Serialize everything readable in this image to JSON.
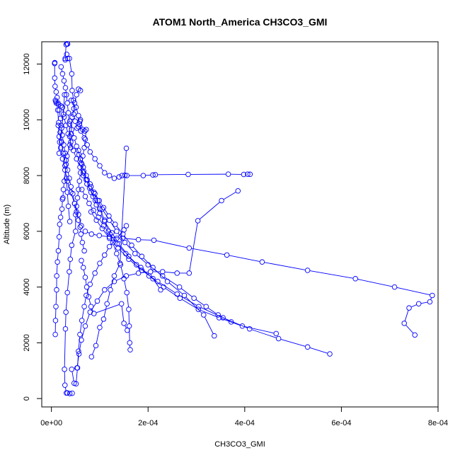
{
  "chart_data": {
    "type": "line",
    "title": "ATOM1 North_America CH3CO3_GMI",
    "xlabel": "CH3CO3_GMI",
    "ylabel": "Altitude (m)",
    "xlim": [
      -2e-05,
      0.0008
    ],
    "ylim": [
      -300,
      12800
    ],
    "x_ticks": [
      0,
      0.0002,
      0.0004,
      0.0006,
      0.0008
    ],
    "x_tick_labels": [
      "0e+00",
      "2e-04",
      "4e-04",
      "6e-04",
      "8e-04"
    ],
    "y_ticks": [
      0,
      2000,
      4000,
      6000,
      8000,
      10000,
      12000
    ],
    "y_tick_labels": [
      "0",
      "2000",
      "4000",
      "6000",
      "8000",
      "10000",
      "12000"
    ],
    "color": "#0000ff",
    "grid": false,
    "legend": "none",
    "series": [
      {
        "x": [
          3.35e-05,
          3.23e-05,
          3.04e-05,
          2.85e-05,
          3.16e-05,
          2.85e-05,
          3.35e-05,
          3.72e-05,
          4.21e-05,
          4.29e-05,
          4.57e-05,
          4.64e-05,
          4.29e-05,
          4.1e-05,
          3.81e-05,
          3.23e-05,
          3.04e-05,
          2.66e-05,
          2.47e-05,
          2.38e-05,
          2.28e-05,
          2.19e-05,
          1.9e-05,
          1.71e-05,
          1.61e-05,
          1.43e-05,
          1.24e-05,
          1.09e-05,
          1.07e-05,
          9.3e-06,
          8.5e-06,
          8e-06
        ],
        "y": [
          12720,
          12730,
          12700,
          12200,
          12350,
          12150,
          12200,
          12200,
          11650,
          11050,
          10700,
          10400,
          10100,
          9500,
          9100,
          8700,
          8400,
          7800,
          7500,
          7200,
          7150,
          6800,
          6500,
          6250,
          5800,
          5300,
          4900,
          4400,
          3900,
          3300,
          2800,
          2300
        ]
      },
      {
        "x": [
          7e-06,
          6.6e-06,
          6.8e-06,
          7.6e-06,
          9.8e-06,
          1.18e-05,
          1.37e-05,
          1.6e-05,
          1.88e-05,
          2e-05,
          2.24e-05,
          2.56e-05,
          2.84e-05,
          3.05e-05,
          3.36e-05,
          3.71e-05,
          4.03e-05,
          4.42e-05,
          4.8e-05,
          5.19e-05,
          5.58e-05,
          5.94e-05,
          6.1e-05,
          6.4e-05,
          6.8e-05
        ],
        "y": [
          12050,
          12020,
          11500,
          11200,
          11000,
          10800,
          10600,
          10350,
          10050,
          9800,
          9450,
          9100,
          8800,
          8550,
          8200,
          7900,
          7600,
          7350,
          7000,
          6700,
          6400,
          6150,
          5900,
          5600,
          5300
        ]
      },
      {
        "x": [
          8.2e-06,
          9.2e-06,
          1.01e-05,
          1.45e-05,
          1.95e-05,
          2.3e-05,
          2.62e-05,
          3e-05,
          3.45e-05,
          4e-05,
          4.55e-05,
          5.2e-05,
          5.91e-05,
          6.63e-05,
          7.35e-05,
          8.2e-05,
          9.1e-05,
          0.0001,
          0.00011,
          0.000118,
          0.000127,
          0.000135,
          0.000143,
          0.00015,
          0.000156,
          0.00016,
          0.000161,
          0.000162,
          0.000163
        ],
        "y": [
          10700,
          10650,
          10600,
          10550,
          10500,
          10450,
          10100,
          9800,
          9500,
          9200,
          8900,
          8600,
          8300,
          8000,
          7700,
          7400,
          7100,
          6800,
          6400,
          6000,
          5600,
          5200,
          4800,
          4300,
          3800,
          3200,
          2600,
          2000,
          1750
        ]
      },
      {
        "x": [
          6e-05,
          5.6e-05,
          5.2e-05,
          4.8e-05,
          4.6e-05,
          4.9e-05,
          5.3e-05,
          5.6e-05,
          5.9e-05,
          6e-05,
          6.5e-05,
          6.9e-05,
          7.2e-05,
          7e-05,
          6.8e-05,
          6.5e-05,
          6.3e-05,
          6e-05,
          5.8e-05,
          5.6e-05,
          5.4e-05,
          5.2e-05,
          5e-05,
          5e-05,
          4.2e-05,
          3.9e-05,
          3.7e-05,
          3.3e-05,
          3e-05,
          2.9e-05,
          2.7e-05,
          2.8e-05,
          3.1e-05,
          3.3e-05,
          3.8e-05,
          4.3e-05
        ],
        "y": [
          11050,
          11100,
          10900,
          10600,
          10200,
          9950,
          9700,
          9750,
          9950,
          10000,
          9650,
          9600,
          9650,
          9300,
          9000,
          8700,
          8400,
          8100,
          7800,
          7500,
          7200,
          6900,
          6600,
          6000,
          5500,
          5000,
          4550,
          3800,
          3100,
          2500,
          1050,
          480,
          200,
          200,
          180,
          190
        ]
      },
      {
        "x": [
          4.1e-05,
          5.1e-05,
          5.6e-05,
          5.8e-05,
          6.1e-05,
          6.8e-05,
          7.4e-05,
          8e-05,
          9e-05,
          0.0001,
          0.00011,
          0.00012,
          0.00013,
          0.00014,
          0.000146,
          0.000152,
          0.000156,
          0.00019,
          0.00021,
          0.000215,
          0.000283,
          0.000366,
          0.000398,
          0.000406,
          0.000411
        ],
        "y": [
          10700,
          10450,
          10150,
          9850,
          9600,
          9350,
          9100,
          8850,
          8600,
          8350,
          8100,
          8000,
          7900,
          7950,
          8000,
          8010,
          8000,
          8000,
          8020,
          8030,
          8040,
          8050,
          8040,
          8050,
          8045
        ]
      },
      {
        "x": [
          3.8e-05,
          4.2e-05,
          4.7e-05,
          5.2e-05,
          5.7e-05,
          6.2e-05,
          6.7e-05,
          7.2e-05,
          7.9e-05,
          8.6e-05,
          9.3e-05,
          0.0001,
          0.00011,
          0.000125,
          0.00014,
          0.00016,
          0.000185,
          0.00021,
          0.000226
        ],
        "y": [
          9950,
          9650,
          9350,
          9050,
          8750,
          8450,
          8150,
          7850,
          7550,
          7250,
          6950,
          6650,
          6350,
          5950,
          5550,
          5100,
          4700,
          4300,
          3900
        ]
      },
      {
        "x": [
          5.6e-05,
          6e-05,
          6.6e-05,
          7.2e-05,
          8e-05,
          8.8e-05,
          9.6e-05,
          0.000105,
          0.00012,
          0.000135,
          0.000152,
          0.000173,
          0.0002,
          0.00023,
          0.000265,
          0.000295,
          0.00032,
          0.000345,
          0.000372
        ],
        "y": [
          8900,
          8600,
          8300,
          8000,
          7700,
          7400,
          7100,
          6800,
          6400,
          6000,
          5600,
          5200,
          4800,
          4400,
          4000,
          3600,
          3300,
          3000,
          2750
        ]
      },
      {
        "x": [
          6.6e-05,
          7.4e-05,
          8.2e-05,
          9e-05,
          9.9e-05,
          0.000108,
          0.000119,
          0.000132,
          0.000148,
          0.000166,
          0.000187,
          0.00021,
          0.00024,
          0.000275,
          0.000315,
          0.000337
        ],
        "y": [
          8100,
          7850,
          7600,
          7350,
          7100,
          6850,
          6550,
          6250,
          5900,
          5500,
          5100,
          4700,
          4200,
          3700,
          3000,
          2250
        ]
      },
      {
        "x": [
          6.3e-05,
          7e-05,
          7.8e-05,
          8.7e-05,
          9.7e-05,
          0.000108,
          0.000121,
          0.000136,
          0.000154,
          0.000176,
          0.000202,
          0.000232,
          0.000266,
          0.000304,
          0.000347,
          0.000395,
          0.000465
        ],
        "y": [
          7500,
          7250,
          7000,
          6750,
          6500,
          6200,
          5900,
          5550,
          5200,
          4800,
          4400,
          4000,
          3600,
          3200,
          2900,
          2600,
          2330
        ]
      },
      {
        "x": [
          8.2e-05,
          9.3e-05,
          0.000105,
          0.00012,
          0.000138,
          0.00016,
          0.000187,
          0.00022,
          0.00026,
          0.000305,
          0.000355,
          0.00041,
          0.00047,
          0.00053,
          0.000576
        ],
        "y": [
          6700,
          6400,
          6100,
          5750,
          5400,
          5000,
          4600,
          4200,
          3750,
          3300,
          2900,
          2500,
          2150,
          1850,
          1600
        ]
      },
      {
        "x": [
          7e-05,
          8.3e-05,
          9.9e-05,
          0.00012,
          0.000147,
          0.00018,
          0.000212,
          0.000285,
          0.000363,
          0.000436,
          0.00053,
          0.000629,
          0.00071,
          0.000788,
          0.000783,
          0.00076,
          0.00074,
          0.00073,
          0.000752
        ],
        "y": [
          6000,
          5900,
          5850,
          5800,
          5750,
          5700,
          5680,
          5400,
          5150,
          4900,
          4600,
          4300,
          4000,
          3700,
          3470,
          3400,
          3250,
          2700,
          2280
        ]
      },
      {
        "x": [
          5.3e-05,
          5.7e-05,
          6.2e-05,
          7e-05,
          8e-05,
          9.5e-05,
          0.00011,
          0.00013,
          0.000155,
          0.00018,
          0.000205,
          0.00023,
          0.00026,
          0.000285,
          0.000303,
          0.000352,
          0.000386
        ],
        "y": [
          1100,
          1600,
          2100,
          2600,
          3100,
          3500,
          3900,
          4200,
          4400,
          4500,
          4550,
          4550,
          4500,
          4500,
          6380,
          7100,
          7450
        ]
      },
      {
        "x": [
          4.2e-05,
          4.7e-05,
          5.1e-05,
          5.4e-05,
          5.6e-05,
          5.9e-05,
          6.3e-05,
          6.8e-05,
          7.2e-05,
          8e-05,
          9e-05,
          0.0001,
          0.00011,
          0.00012,
          0.000135,
          0.00015,
          0.000155
        ],
        "y": [
          1050,
          550,
          530,
          1100,
          1700,
          2300,
          2800,
          3300,
          3700,
          4100,
          4500,
          4850,
          5150,
          5450,
          5750,
          6050,
          6200
        ]
      },
      {
        "x": [
          8.3e-05,
          9.2e-05,
          0.0001,
          0.000108,
          0.000115,
          0.000122,
          0.00013,
          0.000142,
          0.000155
        ],
        "y": [
          1500,
          1900,
          2550,
          2850,
          3400,
          3900,
          4400,
          4850,
          8980
        ]
      },
      {
        "x": [
          1.4e-05,
          1.6e-05,
          1.9e-05,
          2.3e-05,
          2.8e-05,
          3.3e-05,
          4e-05,
          4.8e-05,
          5.6e-05,
          6.2e-05
        ],
        "y": [
          9800,
          9400,
          9000,
          8600,
          8200,
          7800,
          7400,
          7000,
          6600,
          6200
        ]
      },
      {
        "x": [
          1.3e-05,
          1.5e-05,
          1.8e-05,
          2.1e-05,
          2.4e-05,
          2.8e-05,
          3.1e-05,
          3.3e-05,
          3.5e-05,
          3.8e-05
        ],
        "y": [
          10350,
          9900,
          9550,
          9200,
          8800,
          8350,
          7900,
          7400,
          6900,
          6350
        ]
      },
      {
        "x": [
          2e-05,
          2.3e-05,
          2.6e-05,
          2.9e-05,
          3.1e-05,
          3.3e-05,
          3.5e-05,
          3.7e-05,
          3.8e-05,
          4e-05
        ],
        "y": [
          11900,
          11650,
          11400,
          11150,
          10900,
          10600,
          10250,
          9850,
          9400,
          9000
        ]
      },
      {
        "x": [
          1.6e-05,
          1.7e-05,
          2.1e-05,
          2.5e-05,
          2.7e-05
        ],
        "y": [
          8800,
          9200,
          9700,
          10200,
          10900
        ]
      },
      {
        "x": [
          6.2e-05,
          6.6e-05,
          7e-05,
          7.3e-05,
          7.7e-05,
          8.2e-05,
          8.8e-05,
          0.000145,
          0.00015,
          0.000157
        ],
        "y": [
          4950,
          4700,
          4350,
          4000,
          3650,
          3300,
          3050,
          3400,
          2700,
          2450
        ]
      }
    ]
  }
}
